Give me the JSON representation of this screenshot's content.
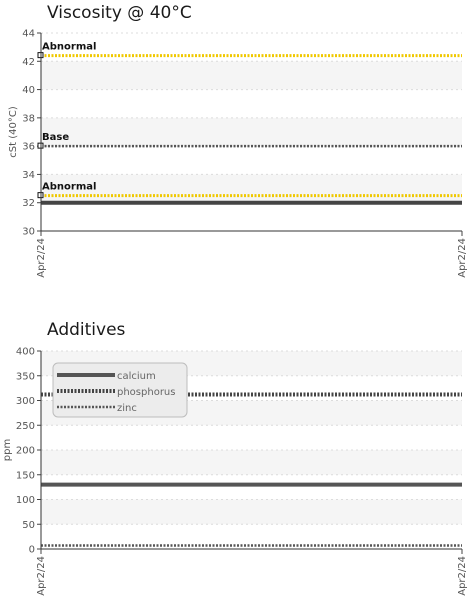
{
  "chart_data": [
    {
      "type": "line",
      "title": "Viscosity @ 40°C",
      "ylabel": "cSt (40°C)",
      "xlabel": "",
      "ylim": [
        30,
        44
      ],
      "yticks": [
        30,
        32,
        34,
        36,
        38,
        40,
        42,
        44
      ],
      "categories": [
        "Apr2/24",
        "Apr2/24"
      ],
      "grid": "alternating bands",
      "series": [
        {
          "values": [
            32,
            32
          ],
          "color": "#444444",
          "style": "solid"
        }
      ],
      "reference_lines": [
        {
          "label": "Abnormal",
          "value": 42.4,
          "color": "#f0c800",
          "style": "dotted"
        },
        {
          "label": "Base",
          "value": 36.0,
          "color": "#555555",
          "style": "dotted"
        },
        {
          "label": "Abnormal",
          "value": 32.5,
          "color": "#f0c800",
          "style": "dotted"
        }
      ]
    },
    {
      "type": "line",
      "title": "Additives",
      "ylabel": "ppm",
      "xlabel": "",
      "ylim": [
        0,
        400
      ],
      "yticks": [
        0,
        50,
        100,
        150,
        200,
        250,
        300,
        350,
        400
      ],
      "categories": [
        "Apr2/24",
        "Apr2/24"
      ],
      "grid": "alternating bands",
      "legend_position": "top-left",
      "series": [
        {
          "name": "calcium",
          "values": [
            130,
            130
          ],
          "color": "#555555",
          "style": "solid"
        },
        {
          "name": "phosphorus",
          "values": [
            312,
            312
          ],
          "color": "#444444",
          "style": "dotted-thick"
        },
        {
          "name": "zinc",
          "values": [
            7,
            7
          ],
          "color": "#555555",
          "style": "dotted-thin"
        }
      ]
    }
  ]
}
